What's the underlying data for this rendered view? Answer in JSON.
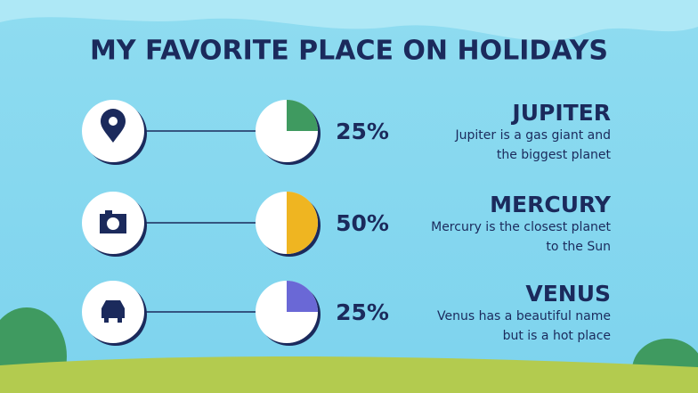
{
  "title": "MY FAVORITE PLACE ON HOLIDAYS",
  "items": [
    {
      "name": "JUPITER",
      "lines": [
        "Jupiter is a gas giant and",
        "the biggest planet"
      ],
      "value": 25,
      "value_label": "25%",
      "color": "#3f9a60"
    },
    {
      "name": "MERCURY",
      "lines": [
        "Mercury is the closest planet",
        "to the Sun"
      ],
      "value": 50,
      "value_label": "50%",
      "color": "#efb521"
    },
    {
      "name": "VENUS",
      "lines": [
        "Venus has a beautiful name",
        "but is a hot place"
      ],
      "value": 25,
      "value_label": "25%",
      "color": "#6a68d6"
    }
  ]
}
